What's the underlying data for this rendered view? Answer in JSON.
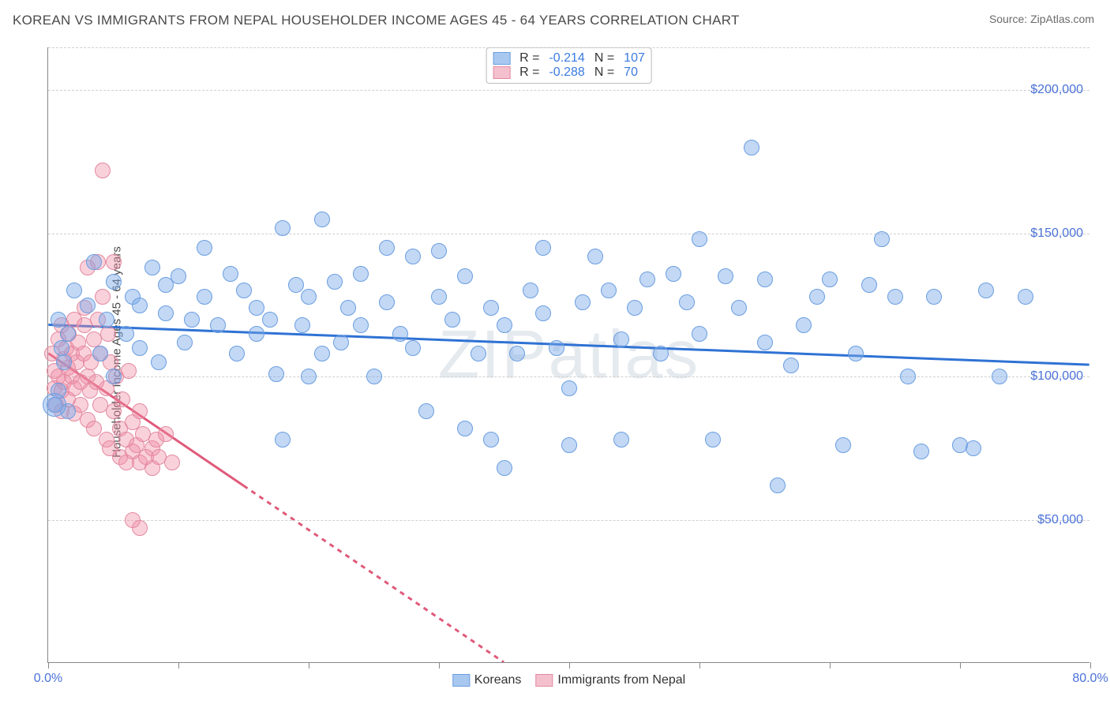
{
  "title": "KOREAN VS IMMIGRANTS FROM NEPAL HOUSEHOLDER INCOME AGES 45 - 64 YEARS CORRELATION CHART",
  "source": "Source: ZipAtlas.com",
  "watermark": "ZIPatlas",
  "ylabel": "Householder Income Ages 45 - 64 years",
  "colors": {
    "series1_fill": "rgba(122,169,232,0.45)",
    "series1_stroke": "#6a9ee0",
    "series1_swatch_fill": "#a9c8f0",
    "series1_swatch_border": "#6a9ee0",
    "series1_line": "#2f72d4",
    "series2_fill": "rgba(240,140,165,0.40)",
    "series2_stroke": "#e38aa0",
    "series2_swatch_fill": "#f4c0cd",
    "series2_swatch_border": "#e38aa0",
    "series2_line": "#e05a7a",
    "tick_text": "#4a72d8",
    "grid": "#cfcfcf"
  },
  "chart": {
    "type": "scatter",
    "xlim": [
      0,
      80
    ],
    "ylim": [
      0,
      215000
    ],
    "x_ticks": [
      0,
      10,
      20,
      30,
      40,
      50,
      60,
      70,
      80
    ],
    "x_tick_labels_shown": {
      "0": "0.0%",
      "80": "80.0%"
    },
    "y_ticks": [
      50000,
      100000,
      150000,
      200000
    ],
    "y_tick_labels": [
      "$50,000",
      "$100,000",
      "$150,000",
      "$200,000"
    ],
    "y_grid_extra": [
      215000
    ],
    "marker_radius": 10,
    "marker_radius_large": 15,
    "line_width": 3
  },
  "stat_legend": [
    {
      "series": 1,
      "R_label": "R = ",
      "R": "-0.214",
      "N_label": "N = ",
      "N": "107"
    },
    {
      "series": 2,
      "R_label": "R = ",
      "R": "-0.288",
      "N_label": "N = ",
      "N": "70"
    }
  ],
  "bottom_legend": [
    {
      "series": 1,
      "label": "Koreans"
    },
    {
      "series": 2,
      "label": "Immigrants from Nepal"
    }
  ],
  "trend_lines": {
    "series1": {
      "x1": 0,
      "y1": 118000,
      "x2": 80,
      "y2": 104000,
      "dashed_from_x": null
    },
    "series2": {
      "x1": 0,
      "y1": 108000,
      "x2": 35,
      "y2": 0,
      "dashed_from_x": 15
    }
  },
  "series1_points": [
    [
      0.5,
      90000
    ],
    [
      0.8,
      120000
    ],
    [
      0.8,
      95000
    ],
    [
      1,
      110000
    ],
    [
      1.2,
      105000
    ],
    [
      1.5,
      88000
    ],
    [
      1.5,
      115000
    ],
    [
      2,
      130000
    ],
    [
      3,
      125000
    ],
    [
      3.5,
      140000
    ],
    [
      4,
      108000
    ],
    [
      4.5,
      120000
    ],
    [
      5,
      133000
    ],
    [
      5,
      100000
    ],
    [
      6,
      115000
    ],
    [
      6.5,
      128000
    ],
    [
      7,
      110000
    ],
    [
      7,
      125000
    ],
    [
      8,
      138000
    ],
    [
      8.5,
      105000
    ],
    [
      9,
      122000
    ],
    [
      9,
      132000
    ],
    [
      10,
      135000
    ],
    [
      10.5,
      112000
    ],
    [
      11,
      120000
    ],
    [
      12,
      128000
    ],
    [
      12,
      145000
    ],
    [
      13,
      118000
    ],
    [
      14,
      136000
    ],
    [
      14.5,
      108000
    ],
    [
      15,
      130000
    ],
    [
      16,
      124000
    ],
    [
      16,
      115000
    ],
    [
      17,
      120000
    ],
    [
      17.5,
      101000
    ],
    [
      18,
      152000
    ],
    [
      19,
      132000
    ],
    [
      19.5,
      118000
    ],
    [
      20,
      128000
    ],
    [
      20,
      100000
    ],
    [
      21,
      155000
    ],
    [
      21,
      108000
    ],
    [
      22,
      133000
    ],
    [
      22.5,
      112000
    ],
    [
      23,
      124000
    ],
    [
      24,
      118000
    ],
    [
      24,
      136000
    ],
    [
      25,
      100000
    ],
    [
      26,
      145000
    ],
    [
      26,
      126000
    ],
    [
      27,
      115000
    ],
    [
      28,
      110000
    ],
    [
      28,
      142000
    ],
    [
      29,
      88000
    ],
    [
      30,
      128000
    ],
    [
      30,
      144000
    ],
    [
      31,
      120000
    ],
    [
      32,
      135000
    ],
    [
      32,
      82000
    ],
    [
      33,
      108000
    ],
    [
      34,
      78000
    ],
    [
      34,
      124000
    ],
    [
      35,
      68000
    ],
    [
      35,
      118000
    ],
    [
      36,
      108000
    ],
    [
      37,
      130000
    ],
    [
      38,
      145000
    ],
    [
      38,
      122000
    ],
    [
      39,
      110000
    ],
    [
      40,
      76000
    ],
    [
      40,
      96000
    ],
    [
      41,
      126000
    ],
    [
      42,
      142000
    ],
    [
      43,
      130000
    ],
    [
      44,
      113000
    ],
    [
      44,
      78000
    ],
    [
      45,
      124000
    ],
    [
      46,
      134000
    ],
    [
      47,
      108000
    ],
    [
      48,
      136000
    ],
    [
      49,
      126000
    ],
    [
      50,
      115000
    ],
    [
      50,
      148000
    ],
    [
      51,
      78000
    ],
    [
      52,
      135000
    ],
    [
      53,
      124000
    ],
    [
      54,
      180000
    ],
    [
      55,
      112000
    ],
    [
      55,
      134000
    ],
    [
      56,
      62000
    ],
    [
      57,
      104000
    ],
    [
      58,
      118000
    ],
    [
      59,
      128000
    ],
    [
      60,
      134000
    ],
    [
      61,
      76000
    ],
    [
      62,
      108000
    ],
    [
      63,
      132000
    ],
    [
      64,
      148000
    ],
    [
      65,
      128000
    ],
    [
      66,
      100000
    ],
    [
      67,
      74000
    ],
    [
      68,
      128000
    ],
    [
      70,
      76000
    ],
    [
      71,
      75000
    ],
    [
      72,
      130000
    ],
    [
      73,
      100000
    ],
    [
      75,
      128000
    ],
    [
      18,
      78000
    ]
  ],
  "series2_points": [
    [
      0.3,
      108000
    ],
    [
      0.5,
      102000
    ],
    [
      0.5,
      96000
    ],
    [
      0.6,
      90000
    ],
    [
      0.8,
      113000
    ],
    [
      0.8,
      100000
    ],
    [
      1,
      118000
    ],
    [
      1,
      95000
    ],
    [
      1,
      88000
    ],
    [
      1.2,
      106000
    ],
    [
      1.2,
      98000
    ],
    [
      1.4,
      110000
    ],
    [
      1.5,
      103000
    ],
    [
      1.5,
      92000
    ],
    [
      1.6,
      115000
    ],
    [
      1.8,
      100000
    ],
    [
      1.8,
      108000
    ],
    [
      2,
      120000
    ],
    [
      2,
      96000
    ],
    [
      2,
      87000
    ],
    [
      2.2,
      105000
    ],
    [
      2.3,
      112000
    ],
    [
      2.5,
      98000
    ],
    [
      2.5,
      90000
    ],
    [
      2.7,
      108000
    ],
    [
      2.8,
      124000
    ],
    [
      3,
      100000
    ],
    [
      3,
      138000
    ],
    [
      3,
      85000
    ],
    [
      3.2,
      95000
    ],
    [
      3.3,
      105000
    ],
    [
      3.5,
      113000
    ],
    [
      3.5,
      82000
    ],
    [
      3.7,
      98000
    ],
    [
      3.8,
      140000
    ],
    [
      4,
      108000
    ],
    [
      4,
      90000
    ],
    [
      4.2,
      128000
    ],
    [
      4.5,
      96000
    ],
    [
      4.5,
      78000
    ],
    [
      4.7,
      75000
    ],
    [
      4.8,
      105000
    ],
    [
      5,
      140000
    ],
    [
      5,
      88000
    ],
    [
      5.2,
      100000
    ],
    [
      5.5,
      82000
    ],
    [
      5.5,
      72000
    ],
    [
      5.7,
      92000
    ],
    [
      6,
      78000
    ],
    [
      6,
      70000
    ],
    [
      6.2,
      102000
    ],
    [
      6.5,
      84000
    ],
    [
      6.5,
      74000
    ],
    [
      6.8,
      76000
    ],
    [
      7,
      88000
    ],
    [
      7,
      70000
    ],
    [
      7.3,
      80000
    ],
    [
      7.5,
      72000
    ],
    [
      8,
      75000
    ],
    [
      8,
      68000
    ],
    [
      8.3,
      78000
    ],
    [
      8.5,
      72000
    ],
    [
      9,
      80000
    ],
    [
      9.5,
      70000
    ],
    [
      7,
      47000
    ],
    [
      6.5,
      50000
    ],
    [
      4.2,
      172000
    ],
    [
      3.8,
      120000
    ],
    [
      4.6,
      115000
    ],
    [
      2.8,
      118000
    ]
  ],
  "large_points_series1": [
    [
      0.5,
      90000
    ]
  ]
}
